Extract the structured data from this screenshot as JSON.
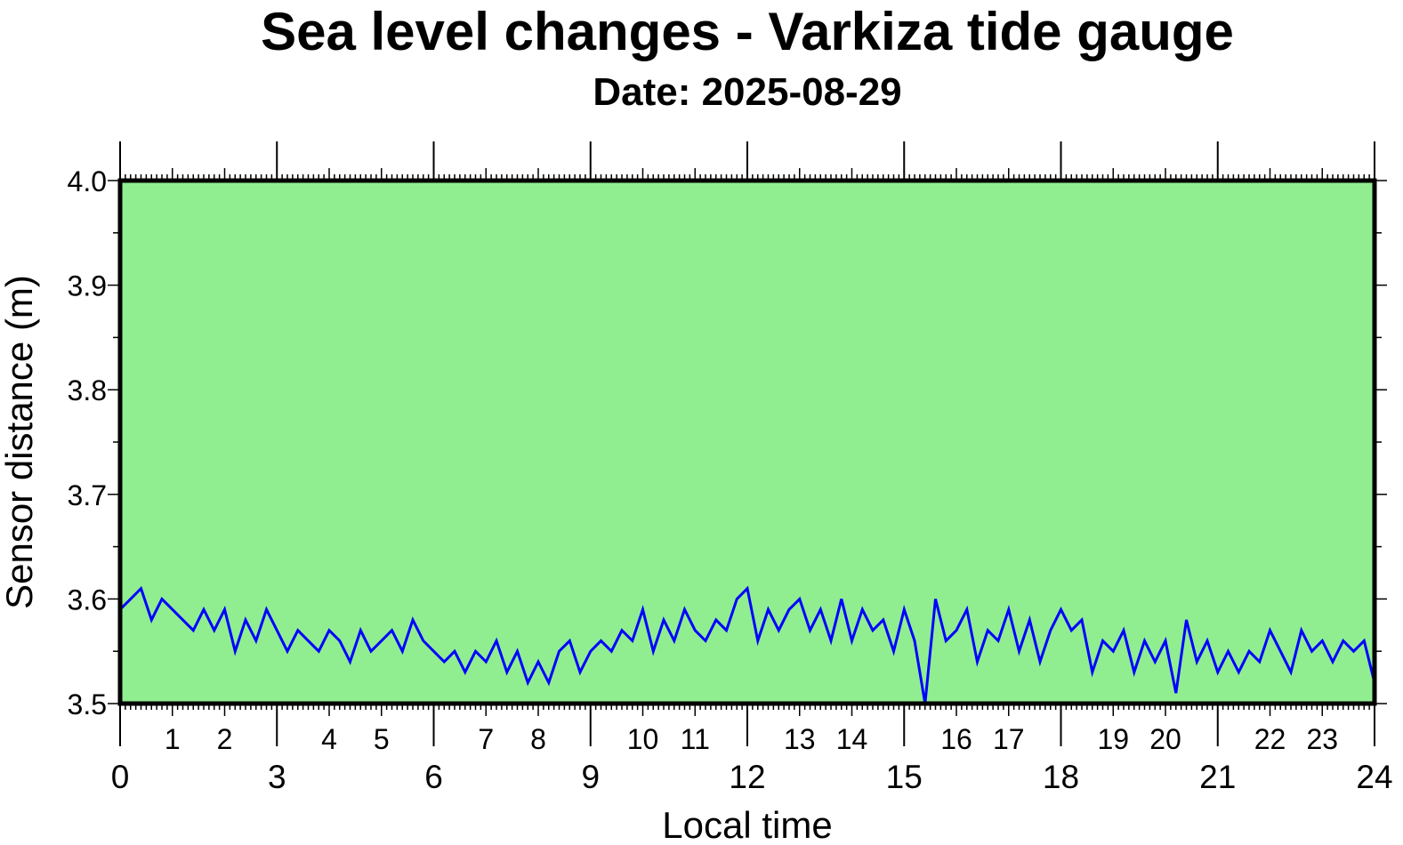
{
  "chart_data": {
    "type": "line",
    "title": "Sea level changes - Varkiza tide gauge",
    "subtitle": "Date: 2025-08-29",
    "xlabel": "Local time",
    "ylabel": "Sensor distance (m)",
    "xlim": [
      0,
      24
    ],
    "ylim": [
      3.5,
      4.0
    ],
    "x_start": 0,
    "x_step": 0.2,
    "x_major_labels": [
      "0",
      "3",
      "6",
      "9",
      "12",
      "15",
      "18",
      "21",
      "24"
    ],
    "x_hour_labels": [
      "1",
      "2",
      "4",
      "5",
      "7",
      "8",
      "10",
      "11",
      "13",
      "14",
      "16",
      "17",
      "19",
      "20",
      "22",
      "23"
    ],
    "y_tick_labels": [
      "3.5",
      "3.6",
      "3.7",
      "3.8",
      "3.9",
      "4.0"
    ],
    "background_color": "#90ee90",
    "series": [
      {
        "name": "Sensor distance",
        "color": "#0000ff",
        "values": [
          3.59,
          3.6,
          3.61,
          3.58,
          3.6,
          3.59,
          3.58,
          3.57,
          3.59,
          3.57,
          3.59,
          3.55,
          3.58,
          3.56,
          3.59,
          3.57,
          3.55,
          3.57,
          3.56,
          3.55,
          3.57,
          3.56,
          3.54,
          3.57,
          3.55,
          3.56,
          3.57,
          3.55,
          3.58,
          3.56,
          3.55,
          3.54,
          3.55,
          3.53,
          3.55,
          3.54,
          3.56,
          3.53,
          3.55,
          3.52,
          3.54,
          3.52,
          3.55,
          3.56,
          3.53,
          3.55,
          3.56,
          3.55,
          3.57,
          3.56,
          3.59,
          3.55,
          3.58,
          3.56,
          3.59,
          3.57,
          3.56,
          3.58,
          3.57,
          3.6,
          3.61,
          3.56,
          3.59,
          3.57,
          3.59,
          3.6,
          3.57,
          3.59,
          3.56,
          3.6,
          3.56,
          3.59,
          3.57,
          3.58,
          3.55,
          3.59,
          3.56,
          3.5,
          3.6,
          3.56,
          3.57,
          3.59,
          3.54,
          3.57,
          3.56,
          3.59,
          3.55,
          3.58,
          3.54,
          3.57,
          3.59,
          3.57,
          3.58,
          3.53,
          3.56,
          3.55,
          3.57,
          3.53,
          3.56,
          3.54,
          3.56,
          3.51,
          3.58,
          3.54,
          3.56,
          3.53,
          3.55,
          3.53,
          3.55,
          3.54,
          3.57,
          3.55,
          3.53,
          3.57,
          3.55,
          3.56,
          3.54,
          3.56,
          3.55,
          3.56,
          3.52
        ]
      }
    ]
  }
}
